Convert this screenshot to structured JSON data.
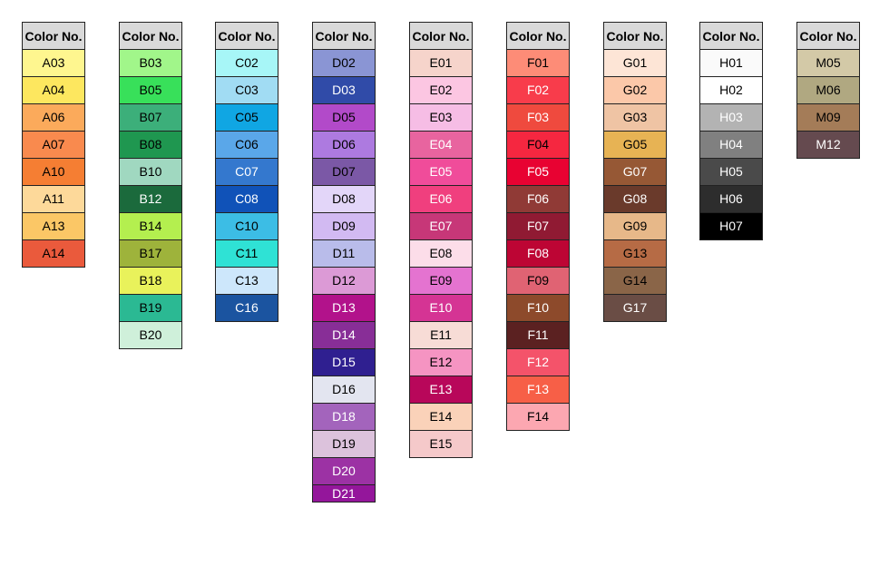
{
  "header_label": "Color No.",
  "columns": [
    {
      "id": "A",
      "cells": [
        {
          "code": "A03",
          "color": "#fef68f",
          "text_color": "#000000"
        },
        {
          "code": "A04",
          "color": "#fde75f",
          "text_color": "#000000"
        },
        {
          "code": "A06",
          "color": "#fbaa5b",
          "text_color": "#000000"
        },
        {
          "code": "A07",
          "color": "#f98a4e",
          "text_color": "#000000"
        },
        {
          "code": "A10",
          "color": "#f57e33",
          "text_color": "#000000"
        },
        {
          "code": "A11",
          "color": "#fdd99a",
          "text_color": "#000000"
        },
        {
          "code": "A13",
          "color": "#fbc766",
          "text_color": "#000000"
        },
        {
          "code": "A14",
          "color": "#ea5a3c",
          "text_color": "#000000"
        }
      ]
    },
    {
      "id": "B",
      "cells": [
        {
          "code": "B03",
          "color": "#a1f68a",
          "text_color": "#000000"
        },
        {
          "code": "B05",
          "color": "#38e05a",
          "text_color": "#000000"
        },
        {
          "code": "B07",
          "color": "#3caf7a",
          "text_color": "#000000"
        },
        {
          "code": "B08",
          "color": "#1f9750",
          "text_color": "#000000"
        },
        {
          "code": "B10",
          "color": "#a0d8c0",
          "text_color": "#000000"
        },
        {
          "code": "B12",
          "color": "#1b6a3c",
          "text_color": "#ffffff"
        },
        {
          "code": "B14",
          "color": "#b4ef4f",
          "text_color": "#000000"
        },
        {
          "code": "B17",
          "color": "#9eb33b",
          "text_color": "#000000"
        },
        {
          "code": "B18",
          "color": "#e9f25b",
          "text_color": "#000000"
        },
        {
          "code": "B19",
          "color": "#2bb993",
          "text_color": "#000000"
        },
        {
          "code": "B20",
          "color": "#cff0da",
          "text_color": "#000000"
        }
      ]
    },
    {
      "id": "C",
      "cells": [
        {
          "code": "C02",
          "color": "#a7f6f7",
          "text_color": "#000000"
        },
        {
          "code": "C03",
          "color": "#a1dcf3",
          "text_color": "#000000"
        },
        {
          "code": "C05",
          "color": "#10a6e3",
          "text_color": "#000000"
        },
        {
          "code": "C06",
          "color": "#5aa7e9",
          "text_color": "#000000"
        },
        {
          "code": "C07",
          "color": "#3478ce",
          "text_color": "#ffffff"
        },
        {
          "code": "C08",
          "color": "#1052b8",
          "text_color": "#ffffff"
        },
        {
          "code": "C10",
          "color": "#3cbde5",
          "text_color": "#000000"
        },
        {
          "code": "C11",
          "color": "#2fe2d5",
          "text_color": "#000000"
        },
        {
          "code": "C13",
          "color": "#cde7fb",
          "text_color": "#000000"
        },
        {
          "code": "C16",
          "color": "#1b54a0",
          "text_color": "#ffffff"
        }
      ]
    },
    {
      "id": "D",
      "cells": [
        {
          "code": "D02",
          "color": "#8a95d4",
          "text_color": "#000000"
        },
        {
          "code": "D03",
          "color": "#304ba8",
          "text_color": "#ffffff"
        },
        {
          "code": "D05",
          "color": "#b24ac9",
          "text_color": "#000000"
        },
        {
          "code": "D06",
          "color": "#ad7ae0",
          "text_color": "#000000"
        },
        {
          "code": "D07",
          "color": "#7b58a6",
          "text_color": "#000000"
        },
        {
          "code": "D08",
          "color": "#e3d6f9",
          "text_color": "#000000"
        },
        {
          "code": "D09",
          "color": "#d2baf2",
          "text_color": "#000000"
        },
        {
          "code": "D11",
          "color": "#b9bcea",
          "text_color": "#000000"
        },
        {
          "code": "D12",
          "color": "#dc9ad6",
          "text_color": "#000000"
        },
        {
          "code": "D13",
          "color": "#b2128b",
          "text_color": "#ffffff"
        },
        {
          "code": "D14",
          "color": "#882e97",
          "text_color": "#ffffff"
        },
        {
          "code": "D15",
          "color": "#2f1f90",
          "text_color": "#ffffff"
        },
        {
          "code": "D16",
          "color": "#e3e5f0",
          "text_color": "#000000"
        },
        {
          "code": "D18",
          "color": "#a364bc",
          "text_color": "#ffffff"
        },
        {
          "code": "D19",
          "color": "#dcc2dc",
          "text_color": "#000000"
        },
        {
          "code": "D20",
          "color": "#9c32a4",
          "text_color": "#ffffff"
        },
        {
          "code": "D21",
          "color": "#94169b",
          "text_color": "#ffffff"
        }
      ]
    },
    {
      "id": "E",
      "cells": [
        {
          "code": "E01",
          "color": "#f6d4cb",
          "text_color": "#000000"
        },
        {
          "code": "E02",
          "color": "#fcc6e2",
          "text_color": "#000000"
        },
        {
          "code": "E03",
          "color": "#f6bde5",
          "text_color": "#000000"
        },
        {
          "code": "E04",
          "color": "#e8649f",
          "text_color": "#ffffff"
        },
        {
          "code": "E05",
          "color": "#f04c9a",
          "text_color": "#ffffff"
        },
        {
          "code": "E06",
          "color": "#f03f7e",
          "text_color": "#ffffff"
        },
        {
          "code": "E07",
          "color": "#c73778",
          "text_color": "#ffffff"
        },
        {
          "code": "E08",
          "color": "#fcdde9",
          "text_color": "#000000"
        },
        {
          "code": "E09",
          "color": "#e473d0",
          "text_color": "#000000"
        },
        {
          "code": "E10",
          "color": "#d53494",
          "text_color": "#ffffff"
        },
        {
          "code": "E11",
          "color": "#f7dcd6",
          "text_color": "#000000"
        },
        {
          "code": "E12",
          "color": "#f594c2",
          "text_color": "#000000"
        },
        {
          "code": "E13",
          "color": "#b8075a",
          "text_color": "#ffffff"
        },
        {
          "code": "E14",
          "color": "#fad2b9",
          "text_color": "#000000"
        },
        {
          "code": "E15",
          "color": "#f5c9ca",
          "text_color": "#000000"
        }
      ]
    },
    {
      "id": "F",
      "cells": [
        {
          "code": "F01",
          "color": "#fd8c77",
          "text_color": "#000000"
        },
        {
          "code": "F02",
          "color": "#f83c4b",
          "text_color": "#ffffff"
        },
        {
          "code": "F03",
          "color": "#ef4a3e",
          "text_color": "#ffffff"
        },
        {
          "code": "F04",
          "color": "#f52740",
          "text_color": "#000000"
        },
        {
          "code": "F05",
          "color": "#e80232",
          "text_color": "#ffffff"
        },
        {
          "code": "F06",
          "color": "#903a36",
          "text_color": "#ffffff"
        },
        {
          "code": "F07",
          "color": "#901a33",
          "text_color": "#ffffff"
        },
        {
          "code": "F08",
          "color": "#bd0534",
          "text_color": "#ffffff"
        },
        {
          "code": "F09",
          "color": "#e06373",
          "text_color": "#000000"
        },
        {
          "code": "F10",
          "color": "#8d4a2b",
          "text_color": "#ffffff"
        },
        {
          "code": "F11",
          "color": "#5b2121",
          "text_color": "#ffffff"
        },
        {
          "code": "F12",
          "color": "#f4536a",
          "text_color": "#ffffff"
        },
        {
          "code": "F13",
          "color": "#f75f47",
          "text_color": "#ffffff"
        },
        {
          "code": "F14",
          "color": "#fca7b1",
          "text_color": "#000000"
        }
      ]
    },
    {
      "id": "G",
      "cells": [
        {
          "code": "G01",
          "color": "#fde5d6",
          "text_color": "#000000"
        },
        {
          "code": "G02",
          "color": "#fbc8a9",
          "text_color": "#000000"
        },
        {
          "code": "G03",
          "color": "#efc4a4",
          "text_color": "#000000"
        },
        {
          "code": "G05",
          "color": "#e7b354",
          "text_color": "#000000"
        },
        {
          "code": "G07",
          "color": "#965835",
          "text_color": "#ffffff"
        },
        {
          "code": "G08",
          "color": "#6a3a2b",
          "text_color": "#ffffff"
        },
        {
          "code": "G09",
          "color": "#e7b889",
          "text_color": "#000000"
        },
        {
          "code": "G13",
          "color": "#b66b45",
          "text_color": "#000000"
        },
        {
          "code": "G14",
          "color": "#8a6548",
          "text_color": "#000000"
        },
        {
          "code": "G17",
          "color": "#6a4d45",
          "text_color": "#ffffff"
        }
      ]
    },
    {
      "id": "H",
      "cells": [
        {
          "code": "H01",
          "color": "#fafafa",
          "text_color": "#000000"
        },
        {
          "code": "H02",
          "color": "#ffffff",
          "text_color": "#000000"
        },
        {
          "code": "H03",
          "color": "#b3b3b3",
          "text_color": "#ffffff"
        },
        {
          "code": "H04",
          "color": "#808080",
          "text_color": "#ffffff"
        },
        {
          "code": "H05",
          "color": "#4a4a4a",
          "text_color": "#ffffff"
        },
        {
          "code": "H06",
          "color": "#2d2d2d",
          "text_color": "#ffffff"
        },
        {
          "code": "H07",
          "color": "#000000",
          "text_color": "#ffffff"
        }
      ]
    },
    {
      "id": "M",
      "cells": [
        {
          "code": "M05",
          "color": "#d3c9a7",
          "text_color": "#000000"
        },
        {
          "code": "M06",
          "color": "#b0a881",
          "text_color": "#000000"
        },
        {
          "code": "M09",
          "color": "#a47c58",
          "text_color": "#000000"
        },
        {
          "code": "M12",
          "color": "#654a4f",
          "text_color": "#ffffff"
        }
      ]
    }
  ]
}
